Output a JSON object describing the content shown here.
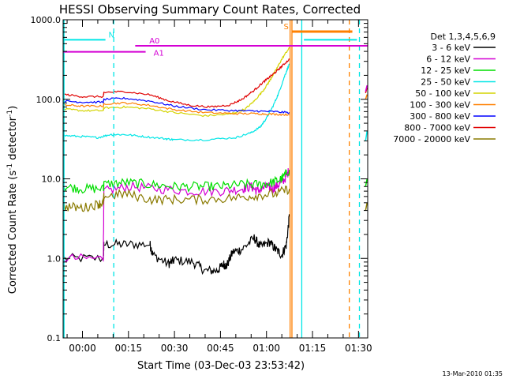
{
  "chart_data": {
    "type": "line",
    "title": "HESSI Observing Summary Count Rates, Corrected",
    "xlabel": "Start Time (03-Dec-03 23:53:42)",
    "ylabel_parts": [
      "Corrected Count Rate (s",
      "-1",
      " detector",
      "-1",
      ")"
    ],
    "y_scale": "log",
    "ylim": [
      0.1,
      1000
    ],
    "y_ticks": [
      {
        "value": 0.1,
        "label": "0.1"
      },
      {
        "value": 1,
        "label": "1.0"
      },
      {
        "value": 10,
        "label": "10.0"
      },
      {
        "value": 100,
        "label": "100.0"
      },
      {
        "value": 1000,
        "label": "1000.0"
      }
    ],
    "xlim_minutes": [
      -6.3,
      93
    ],
    "x_ticks": [
      {
        "minute": 0,
        "label": "00:00"
      },
      {
        "minute": 15,
        "label": "00:15"
      },
      {
        "minute": 30,
        "label": "00:30"
      },
      {
        "minute": 45,
        "label": "00:45"
      },
      {
        "minute": 60,
        "label": "01:00"
      },
      {
        "minute": 75,
        "label": "01:15"
      },
      {
        "minute": 90,
        "label": "01:30"
      }
    ],
    "legend_title": "Det 1,3,4,5,6,9",
    "legend_position": "right",
    "series": [
      {
        "name": "3 - 6 keV",
        "color": "#000000",
        "x": [
          -6,
          6.8,
          7,
          14,
          22,
          23,
          28,
          30,
          36,
          40,
          44,
          46,
          47,
          49,
          52,
          56,
          58,
          61,
          63,
          65,
          66.5,
          67.5
        ],
        "y": [
          1.0,
          1.0,
          1.5,
          1.5,
          1.5,
          1.1,
          0.85,
          0.95,
          0.9,
          0.7,
          0.7,
          0.85,
          0.8,
          1.2,
          1.3,
          1.8,
          1.4,
          1.6,
          1.3,
          1.1,
          1.5,
          3.5
        ]
      },
      {
        "name": "6 - 12 keV",
        "color": "#d400d4",
        "x": [
          -6,
          6.8,
          7,
          15,
          25,
          35,
          45,
          52,
          55,
          57,
          60,
          62,
          64,
          66,
          67.5
        ],
        "y": [
          1.0,
          1.0,
          7.0,
          8.0,
          7.5,
          7.0,
          7.0,
          7.5,
          8.0,
          7.0,
          8.0,
          7.5,
          8.5,
          10.0,
          13.0
        ]
      },
      {
        "name": "12 - 25 keV",
        "color": "#00dd00",
        "x": [
          -6,
          0,
          6.8,
          7,
          14,
          22,
          30,
          38,
          45,
          52,
          58,
          62,
          65,
          67.5
        ],
        "y": [
          8.0,
          7.5,
          7.5,
          8.5,
          9.0,
          8.5,
          8.0,
          8.0,
          8.0,
          8.5,
          8.5,
          9.0,
          10.0,
          13.0
        ]
      },
      {
        "name": "25 - 50 keV",
        "color": "#00e6e6",
        "x": [
          -6,
          0,
          5,
          9,
          14,
          20,
          27,
          30,
          40,
          50,
          55,
          58,
          60,
          62,
          64,
          66,
          67.5
        ],
        "y": [
          35,
          34,
          33,
          36,
          36,
          34,
          32,
          31,
          31,
          33,
          38,
          45,
          58,
          80,
          120,
          200,
          280
        ]
      },
      {
        "name": "50 - 100 keV",
        "color": "#d4d400",
        "x": [
          -6,
          0,
          6.8,
          7,
          14,
          22,
          30,
          40,
          48,
          53,
          56,
          59,
          61,
          63,
          65,
          67.5
        ],
        "y": [
          75,
          72,
          72,
          78,
          80,
          76,
          68,
          62,
          65,
          75,
          95,
          130,
          170,
          230,
          320,
          450
        ]
      },
      {
        "name": "100 - 300 keV",
        "color": "#ff8000",
        "x": [
          -6,
          0,
          6.8,
          7,
          14,
          22,
          30,
          40,
          50,
          57,
          62,
          67.5
        ],
        "y": [
          85,
          82,
          82,
          88,
          90,
          84,
          74,
          68,
          66,
          66,
          65,
          64
        ]
      },
      {
        "name": "300 - 800 keV",
        "color": "#0000ff",
        "x": [
          -6,
          0,
          6.8,
          7,
          14,
          22,
          30,
          40,
          50,
          57,
          62,
          67.5
        ],
        "y": [
          95,
          92,
          92,
          100,
          103,
          95,
          82,
          74,
          72,
          71,
          70,
          68
        ]
      },
      {
        "name": "800 - 7000 keV",
        "color": "#e00000",
        "x": [
          -6,
          0,
          6.8,
          7,
          14,
          22,
          28,
          35,
          42,
          48,
          52,
          56,
          59,
          61,
          63,
          65,
          67.5
        ],
        "y": [
          115,
          108,
          108,
          122,
          125,
          114,
          96,
          84,
          80,
          85,
          100,
          130,
          165,
          190,
          220,
          260,
          320
        ]
      },
      {
        "name": "7000 - 20000 keV",
        "color": "#8a7a00",
        "x": [
          -6,
          0,
          5,
          6.8,
          7,
          14,
          22,
          30,
          40,
          50,
          57,
          63,
          67.5
        ],
        "y": [
          4.5,
          4.3,
          4.8,
          5.0,
          6.0,
          6.5,
          5.5,
          5.5,
          5.5,
          5.8,
          6.2,
          6.5,
          7.5
        ]
      }
    ],
    "tail_segments": [
      {
        "color": "#00dd00",
        "x": [
          92.3,
          92.8
        ],
        "y": [
          8,
          10
        ]
      },
      {
        "color": "#00e6e6",
        "x": [
          92.3,
          92.8
        ],
        "y": [
          30,
          40
        ]
      },
      {
        "color": "#8a7a00",
        "x": [
          92.3,
          92.8
        ],
        "y": [
          4,
          5
        ]
      },
      {
        "color": "#e00000",
        "x": [
          92.3,
          92.8
        ],
        "y": [
          120,
          140
        ]
      },
      {
        "color": "#ff8000",
        "x": [
          92.3,
          92.8
        ],
        "y": [
          100,
          115
        ]
      },
      {
        "color": "#d400d4",
        "x": [
          92.3,
          92.8
        ],
        "y": [
          125,
          150
        ]
      }
    ],
    "flags": [
      {
        "label": "N",
        "color": "#00e6e6",
        "y": 560,
        "label_x": 8.5,
        "segments": [
          [
            -6.3,
            7.5
          ],
          [
            72.2,
            89.5
          ]
        ]
      },
      {
        "label": "A0",
        "color": "#d400d4",
        "y": 470,
        "label_x": 21.8,
        "segments": [
          [
            17.2,
            93
          ]
        ]
      },
      {
        "label": "A1",
        "color": "#d400d4",
        "y": 395,
        "label_x": 23.2,
        "segments": [
          [
            -6.3,
            20.6
          ]
        ]
      },
      {
        "label": "S",
        "color": "#ff8000",
        "y": 710,
        "label_x": 65.6,
        "segments": [
          [
            68.3,
            88
          ]
        ]
      }
    ],
    "vertical_lines": [
      {
        "minute": -6.0,
        "color": "#00e6e6",
        "style": "solid"
      },
      {
        "minute": 10.2,
        "color": "#00e6e6",
        "style": "dashed"
      },
      {
        "minute": 67.7,
        "color": "#ff8000",
        "style": "solid"
      },
      {
        "minute": 68.3,
        "color": "#ff8000",
        "style": "solid"
      },
      {
        "minute": 71.5,
        "color": "#00e6e6",
        "style": "solid"
      },
      {
        "minute": 87.0,
        "color": "#ff8000",
        "style": "dashed"
      },
      {
        "minute": 90.3,
        "color": "#00e6e6",
        "style": "dashed"
      }
    ],
    "grid": false
  },
  "footer_stamp": "13-Mar-2010 01:35"
}
